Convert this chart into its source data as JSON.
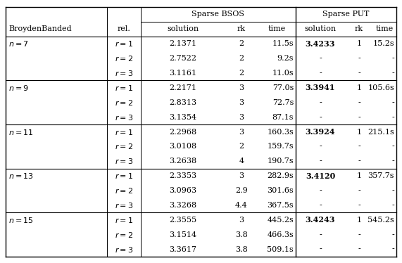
{
  "groups": [
    {
      "n_label": "n=7",
      "rows": [
        {
          "rel": "r=1",
          "bsos_sol": "2.1371",
          "bsos_rk": "2",
          "bsos_time": "11.5s",
          "put_sol": "3.4233",
          "put_rk": "1",
          "put_time": "15.2s",
          "put_bold": true
        },
        {
          "rel": "r=2",
          "bsos_sol": "2.7522",
          "bsos_rk": "2",
          "bsos_time": "9.2s",
          "put_sol": "-",
          "put_rk": "-",
          "put_time": "-",
          "put_bold": false
        },
        {
          "rel": "r=3",
          "bsos_sol": "3.1161",
          "bsos_rk": "2",
          "bsos_time": "11.0s",
          "put_sol": "-",
          "put_rk": "-",
          "put_time": "-",
          "put_bold": false
        }
      ]
    },
    {
      "n_label": "n=9",
      "rows": [
        {
          "rel": "r=1",
          "bsos_sol": "2.2171",
          "bsos_rk": "3",
          "bsos_time": "77.0s",
          "put_sol": "3.3941",
          "put_rk": "1",
          "put_time": "105.6s",
          "put_bold": true
        },
        {
          "rel": "r=2",
          "bsos_sol": "2.8313",
          "bsos_rk": "3",
          "bsos_time": "72.7s",
          "put_sol": "-",
          "put_rk": "-",
          "put_time": "-",
          "put_bold": false
        },
        {
          "rel": "r=3",
          "bsos_sol": "3.1354",
          "bsos_rk": "3",
          "bsos_time": "87.1s",
          "put_sol": "-",
          "put_rk": "-",
          "put_time": "-",
          "put_bold": false
        }
      ]
    },
    {
      "n_label": "n=11",
      "rows": [
        {
          "rel": "r=1",
          "bsos_sol": "2.2968",
          "bsos_rk": "3",
          "bsos_time": "160.3s",
          "put_sol": "3.3924",
          "put_rk": "1",
          "put_time": "215.1s",
          "put_bold": true
        },
        {
          "rel": "r=2",
          "bsos_sol": "3.0108",
          "bsos_rk": "2",
          "bsos_time": "159.7s",
          "put_sol": "-",
          "put_rk": "-",
          "put_time": "-",
          "put_bold": false
        },
        {
          "rel": "r=3",
          "bsos_sol": "3.2638",
          "bsos_rk": "4",
          "bsos_time": "190.7s",
          "put_sol": "-",
          "put_rk": "-",
          "put_time": "-",
          "put_bold": false
        }
      ]
    },
    {
      "n_label": "n=13",
      "rows": [
        {
          "rel": "r=1",
          "bsos_sol": "2.3353",
          "bsos_rk": "3",
          "bsos_time": "282.9s",
          "put_sol": "3.4120",
          "put_rk": "1",
          "put_time": "357.7s",
          "put_bold": true
        },
        {
          "rel": "r=2",
          "bsos_sol": "3.0963",
          "bsos_rk": "2.9",
          "bsos_time": "301.6s",
          "put_sol": "-",
          "put_rk": "-",
          "put_time": "-",
          "put_bold": false
        },
        {
          "rel": "r=3",
          "bsos_sol": "3.3268",
          "bsos_rk": "4.4",
          "bsos_time": "367.5s",
          "put_sol": "-",
          "put_rk": "-",
          "put_time": "-",
          "put_bold": false
        }
      ]
    },
    {
      "n_label": "n=15",
      "rows": [
        {
          "rel": "r=1",
          "bsos_sol": "2.3555",
          "bsos_rk": "3",
          "bsos_time": "445.2s",
          "put_sol": "3.4243",
          "put_rk": "1",
          "put_time": "545.2s",
          "put_bold": true
        },
        {
          "rel": "r=2",
          "bsos_sol": "3.1514",
          "bsos_rk": "3.8",
          "bsos_time": "466.3s",
          "put_sol": "-",
          "put_rk": "-",
          "put_time": "-",
          "put_bold": false
        },
        {
          "rel": "r=3",
          "bsos_sol": "3.3617",
          "bsos_rk": "3.8",
          "bsos_time": "509.1s",
          "put_sol": "-",
          "put_rk": "-",
          "put_time": "-",
          "put_bold": false
        }
      ]
    }
  ],
  "bg_color": "#ffffff",
  "line_color": "#000000",
  "font_size": 8.0
}
